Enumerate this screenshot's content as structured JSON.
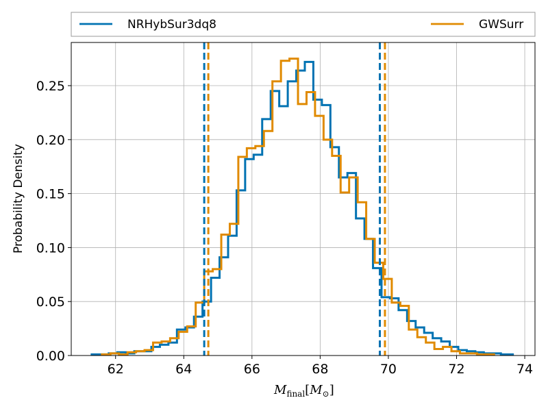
{
  "chart_data": {
    "type": "histogram",
    "xlabel": {
      "main": "M",
      "sub": "final",
      "bracket_open": "[",
      "mass": "M",
      "sun": "⊙",
      "bracket_close": "]"
    },
    "ylabel": "Probability Density",
    "xlim": [
      60.7,
      74.3
    ],
    "ylim": [
      0.0,
      0.29
    ],
    "xticks": [
      62,
      64,
      66,
      68,
      70,
      72,
      74
    ],
    "yticks": [
      0.0,
      0.05,
      0.1,
      0.15,
      0.2,
      0.25
    ],
    "ytick_labels": [
      "0.00",
      "0.05",
      "0.10",
      "0.15",
      "0.20",
      "0.25"
    ],
    "grid": true,
    "legend_placement": "top-outside",
    "series": [
      {
        "name": "NRHybSur3dq8",
        "color": "#0072b2",
        "linestyle": "solid",
        "bin_edges": [
          61.3,
          61.55,
          61.8,
          62.05,
          62.3,
          62.55,
          62.8,
          63.05,
          63.3,
          63.55,
          63.8,
          64.05,
          64.3,
          64.55,
          64.8,
          65.05,
          65.3,
          65.55,
          65.8,
          66.05,
          66.3,
          66.55,
          66.8,
          67.05,
          67.3,
          67.55,
          67.8,
          68.05,
          68.3,
          68.55,
          68.8,
          69.05,
          69.3,
          69.55,
          69.8,
          70.05,
          70.3,
          70.55,
          70.8,
          71.05,
          71.3,
          71.55,
          71.8,
          72.05,
          72.3,
          72.55,
          72.8,
          73.05,
          73.3,
          73.55,
          73.65
        ],
        "densities": [
          0.001,
          0.001,
          0.002,
          0.003,
          0.002,
          0.004,
          0.004,
          0.008,
          0.01,
          0.012,
          0.024,
          0.026,
          0.036,
          0.05,
          0.072,
          0.091,
          0.111,
          0.153,
          0.182,
          0.186,
          0.219,
          0.245,
          0.231,
          0.254,
          0.264,
          0.272,
          0.237,
          0.232,
          0.193,
          0.165,
          0.169,
          0.127,
          0.108,
          0.081,
          0.054,
          0.053,
          0.042,
          0.032,
          0.026,
          0.021,
          0.016,
          0.013,
          0.008,
          0.005,
          0.004,
          0.003,
          0.002,
          0.002,
          0.001,
          0.001
        ],
        "interval_lines": [
          64.6,
          69.75
        ]
      },
      {
        "name": "GWSurr",
        "color": "#e08a00",
        "linestyle": "solid",
        "bin_edges": [
          61.6,
          61.85,
          62.1,
          62.35,
          62.6,
          62.85,
          63.1,
          63.35,
          63.6,
          63.85,
          64.1,
          64.35,
          64.6,
          64.85,
          65.1,
          65.35,
          65.6,
          65.85,
          66.1,
          66.35,
          66.6,
          66.85,
          67.1,
          67.35,
          67.6,
          67.85,
          68.1,
          68.35,
          68.6,
          68.85,
          69.1,
          69.35,
          69.6,
          69.85,
          70.1,
          70.35,
          70.6,
          70.85,
          71.1,
          71.35,
          71.6,
          71.85,
          72.1,
          72.35,
          72.6,
          72.85,
          73.1
        ],
        "densities": [
          0.001,
          0.002,
          0.001,
          0.003,
          0.004,
          0.005,
          0.012,
          0.013,
          0.016,
          0.022,
          0.027,
          0.049,
          0.078,
          0.08,
          0.112,
          0.122,
          0.184,
          0.192,
          0.194,
          0.208,
          0.254,
          0.273,
          0.275,
          0.233,
          0.244,
          0.222,
          0.2,
          0.185,
          0.151,
          0.165,
          0.142,
          0.108,
          0.086,
          0.071,
          0.049,
          0.046,
          0.024,
          0.017,
          0.012,
          0.006,
          0.008,
          0.004,
          0.002,
          0.002,
          0.001,
          0.001
        ],
        "interval_lines": [
          64.72,
          69.9
        ]
      }
    ]
  }
}
